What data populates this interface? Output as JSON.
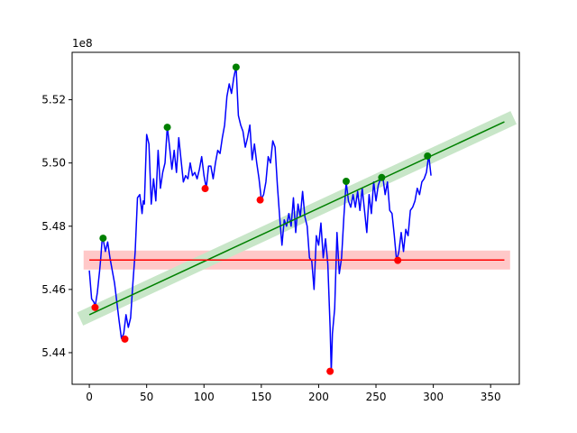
{
  "chart_data": {
    "type": "line",
    "title": "",
    "xlabel": "",
    "ylabel": "",
    "y_offset_label": "1e8",
    "xlim": [
      -15,
      375
    ],
    "ylim": [
      5.43,
      5.535
    ],
    "x_ticks": [
      0,
      50,
      100,
      150,
      200,
      250,
      300,
      350
    ],
    "x_tick_labels": [
      "0",
      "50",
      "100",
      "150",
      "200",
      "250",
      "300",
      "350"
    ],
    "y_ticks": [
      5.44,
      5.46,
      5.48,
      5.5,
      5.52
    ],
    "y_tick_labels": [
      "5.44",
      "5.46",
      "5.48",
      "5.50",
      "5.52"
    ],
    "grid": false,
    "colors": {
      "price": "#0000ff",
      "trend": "#008000",
      "trend_band": "#c8e6c8",
      "level": "#ff0000",
      "level_band": "#ffc8c8",
      "high_points": "#008000",
      "low_points": "#ff0000"
    },
    "series": [
      {
        "kind": "price_line",
        "x": [
          0,
          2,
          4,
          5,
          7,
          9,
          10,
          11,
          12,
          14,
          16,
          18,
          20,
          22,
          24,
          26,
          28,
          30,
          32,
          34,
          36,
          38,
          40,
          42,
          44,
          46,
          47,
          48,
          50,
          52,
          54,
          56,
          58,
          60,
          62,
          64,
          66,
          68,
          70,
          72,
          74,
          76,
          78,
          80,
          82,
          84,
          86,
          88,
          90,
          92,
          94,
          96,
          98,
          100,
          102,
          104,
          106,
          108,
          110,
          112,
          114,
          116,
          118,
          120,
          122,
          124,
          126,
          128,
          130,
          132,
          134,
          136,
          138,
          140,
          142,
          144,
          146,
          148,
          150,
          152,
          154,
          156,
          158,
          160,
          162,
          164,
          166,
          168,
          170,
          172,
          174,
          176,
          178,
          180,
          182,
          184,
          186,
          188,
          190,
          192,
          194,
          196,
          198,
          200,
          202,
          204,
          206,
          208,
          210,
          211,
          212,
          214,
          216,
          218,
          220,
          222,
          224,
          226,
          228,
          230,
          232,
          234,
          236,
          238,
          240,
          242,
          244,
          246,
          248,
          250,
          252,
          254,
          256,
          258,
          260,
          262,
          264,
          266,
          268,
          270,
          272,
          274,
          276,
          278,
          280,
          282,
          284,
          286,
          288,
          290,
          292,
          294,
          296,
          298
        ],
        "y": [
          5.466,
          5.457,
          5.456,
          5.4545,
          5.459,
          5.466,
          5.47,
          5.475,
          5.476,
          5.472,
          5.475,
          5.47,
          5.466,
          5.462,
          5.456,
          5.45,
          5.4445,
          5.446,
          5.452,
          5.448,
          5.451,
          5.462,
          5.472,
          5.489,
          5.49,
          5.484,
          5.488,
          5.487,
          5.509,
          5.506,
          5.487,
          5.495,
          5.488,
          5.504,
          5.492,
          5.497,
          5.5,
          5.5115,
          5.505,
          5.498,
          5.504,
          5.497,
          5.508,
          5.501,
          5.494,
          5.496,
          5.495,
          5.5,
          5.496,
          5.497,
          5.495,
          5.498,
          5.502,
          5.496,
          5.492,
          5.499,
          5.499,
          5.495,
          5.5,
          5.504,
          5.503,
          5.508,
          5.512,
          5.521,
          5.525,
          5.522,
          5.527,
          5.5305,
          5.515,
          5.512,
          5.51,
          5.505,
          5.508,
          5.512,
          5.501,
          5.506,
          5.5,
          5.495,
          5.4885,
          5.49,
          5.494,
          5.502,
          5.5,
          5.507,
          5.505,
          5.493,
          5.483,
          5.474,
          5.482,
          5.48,
          5.484,
          5.48,
          5.489,
          5.478,
          5.487,
          5.483,
          5.491,
          5.483,
          5.48,
          5.47,
          5.469,
          5.46,
          5.477,
          5.474,
          5.481,
          5.47,
          5.476,
          5.468,
          5.448,
          5.434,
          5.446,
          5.454,
          5.478,
          5.465,
          5.47,
          5.483,
          5.494,
          5.488,
          5.486,
          5.49,
          5.486,
          5.491,
          5.485,
          5.492,
          5.485,
          5.478,
          5.49,
          5.484,
          5.494,
          5.488,
          5.493,
          5.495,
          5.4955,
          5.49,
          5.494,
          5.485,
          5.484,
          5.477,
          5.469,
          5.472,
          5.478,
          5.472,
          5.479,
          5.477,
          5.485,
          5.486,
          5.488,
          5.492,
          5.49,
          5.494,
          5.495,
          5.497,
          5.5025,
          5.496
        ]
      },
      {
        "kind": "trend_line",
        "x": [
          0,
          362
        ],
        "y": [
          5.452,
          5.513
        ]
      },
      {
        "kind": "level_line",
        "x": [
          0,
          362
        ],
        "y": [
          5.4693,
          5.4693
        ]
      },
      {
        "kind": "high_points",
        "x": [
          12,
          68,
          128,
          224,
          255,
          295
        ],
        "y": [
          5.4762,
          5.5113,
          5.5303,
          5.4942,
          5.4954,
          5.5022
        ]
      },
      {
        "kind": "low_points",
        "x": [
          5,
          31,
          101,
          149,
          210,
          269
        ],
        "y": [
          5.4543,
          5.4443,
          5.4919,
          5.4883,
          5.4341,
          5.4692
        ]
      }
    ]
  }
}
